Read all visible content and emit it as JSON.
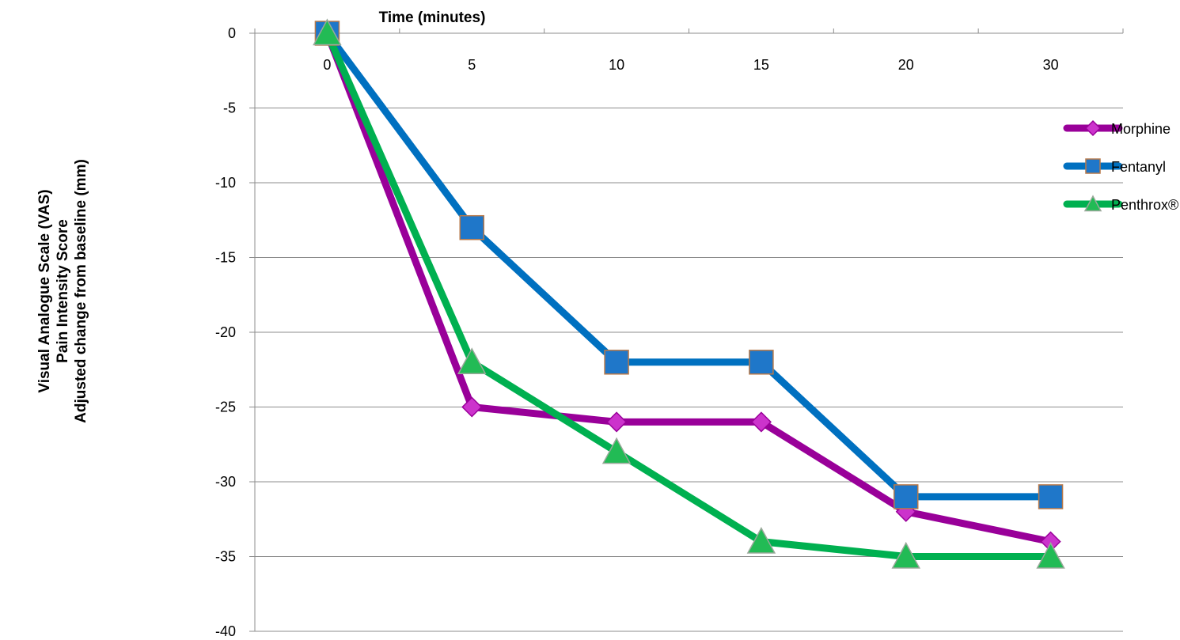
{
  "chart_data": {
    "type": "line",
    "title": "",
    "xlabel": "Time (minutes)",
    "ylabel_lines": [
      "Visual Analogue Scale (VAS)",
      "Pain Intensity Score",
      "Adjusted change from baseline (mm)"
    ],
    "categories": [
      "0",
      "5",
      "10",
      "15",
      "20",
      "30"
    ],
    "y_ticks": [
      0,
      -5,
      -10,
      -15,
      -20,
      -25,
      -30,
      -35,
      -40
    ],
    "ylim": [
      -40,
      0
    ],
    "grid": "horizontal",
    "legend_position": "right",
    "series": [
      {
        "name": "Morphine",
        "values": [
          0,
          -25,
          -26,
          -26,
          -32,
          -34
        ],
        "color": "#990099",
        "marker": "diamond"
      },
      {
        "name": "Fentanyl",
        "values": [
          0,
          -13,
          -22,
          -22,
          -31,
          -31
        ],
        "color": "#0070C0",
        "marker": "square"
      },
      {
        "name": "Penthrox®",
        "values": [
          0,
          -22,
          -28,
          -34,
          -35,
          -35
        ],
        "color": "#00B050",
        "marker": "triangle"
      }
    ]
  }
}
